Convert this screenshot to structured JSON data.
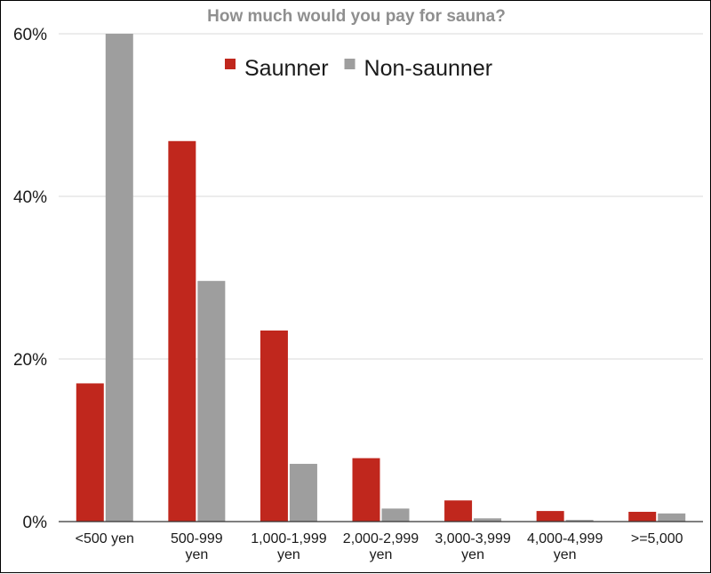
{
  "chart_data": {
    "type": "bar",
    "title": "How much would you pay for sauna?",
    "xlabel": "",
    "ylabel": "",
    "categories": [
      [
        "<500 yen"
      ],
      [
        "500-999",
        "yen"
      ],
      [
        "1,000-1,999",
        "yen"
      ],
      [
        "2,000-2,999",
        "yen"
      ],
      [
        "3,000-3,999",
        "yen"
      ],
      [
        "4,000-4,999",
        "yen"
      ],
      [
        ">=5,000"
      ]
    ],
    "series": [
      {
        "name": "Saunner",
        "color": "#c0271d",
        "values": [
          17.0,
          46.8,
          23.5,
          7.8,
          2.6,
          1.3,
          1.2
        ]
      },
      {
        "name": "Non-saunner",
        "color": "#9e9e9e",
        "values": [
          60.0,
          29.6,
          7.1,
          1.6,
          0.4,
          0.2,
          1.0
        ]
      }
    ],
    "ylim": [
      0,
      60
    ],
    "yticks": [
      0,
      20,
      40,
      60
    ],
    "ytick_labels": [
      "0%",
      "20%",
      "40%",
      "60%"
    ],
    "grid": true,
    "legend_position": "top-center"
  }
}
